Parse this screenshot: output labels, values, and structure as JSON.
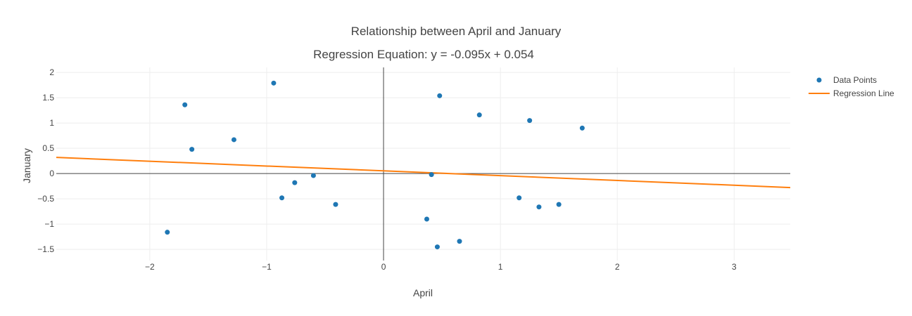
{
  "chart_data": {
    "type": "scatter",
    "title": "Relationship between April and January",
    "subtitle": "Regression Equation: y = -0.095x + 0.054",
    "xlabel": "April",
    "ylabel": "January",
    "xlim": [
      -2.8,
      3.48
    ],
    "ylim": [
      -1.72,
      2.1
    ],
    "grid": true,
    "zero_lines": true,
    "legend_position": "top-right",
    "x_ticks": [
      -2,
      -1,
      0,
      1,
      2,
      3
    ],
    "x_tick_labels": [
      "−2",
      "−1",
      "0",
      "1",
      "2",
      "3"
    ],
    "y_ticks": [
      -1.5,
      -1,
      -0.5,
      0,
      0.5,
      1,
      1.5,
      2
    ],
    "y_tick_labels": [
      "−1.5",
      "−1",
      "−0.5",
      "0",
      "0.5",
      "1",
      "1.5",
      "2"
    ],
    "series": [
      {
        "name": "Data Points",
        "mode": "markers",
        "color": "#1f77b4",
        "x": [
          -1.85,
          -1.7,
          -1.64,
          -1.28,
          -0.94,
          -0.87,
          -0.76,
          -0.6,
          -0.41,
          0.37,
          0.41,
          0.46,
          0.48,
          0.65,
          0.82,
          1.16,
          1.25,
          1.33,
          1.5,
          1.7
        ],
        "y": [
          -1.16,
          1.36,
          0.48,
          0.67,
          1.79,
          -0.48,
          -0.18,
          -0.04,
          -0.61,
          -0.9,
          -0.02,
          -1.45,
          1.54,
          -1.34,
          1.16,
          -0.48,
          1.05,
          -0.66,
          -0.61,
          0.9
        ]
      },
      {
        "name": "Regression Line",
        "mode": "lines",
        "color": "#ff7f0e",
        "slope": -0.095,
        "intercept": 0.054
      }
    ]
  }
}
